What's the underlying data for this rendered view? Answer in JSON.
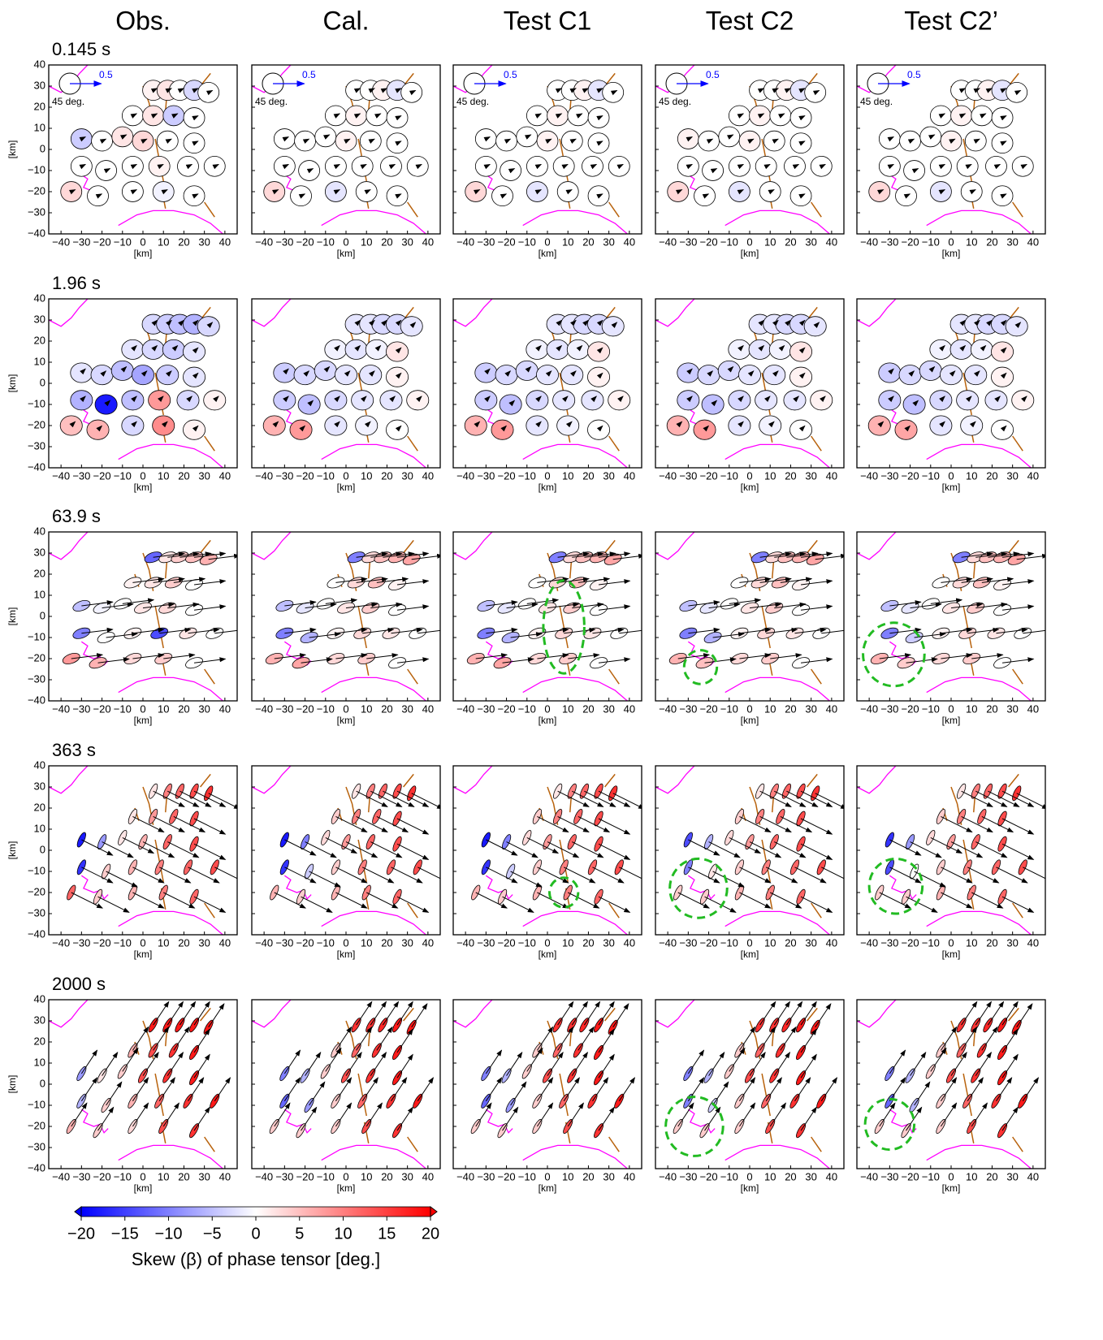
{
  "columns": [
    "Obs.",
    "Cal.",
    "Test C1",
    "Test C2",
    "Test C2’"
  ],
  "axis_label": "[km]",
  "xlim": [
    -46,
    46
  ],
  "ylim": [
    -40,
    40
  ],
  "xticks": [
    {
      "value": -40,
      "label": "−40"
    },
    {
      "value": -30,
      "label": "−30"
    },
    {
      "value": -20,
      "label": "−20"
    },
    {
      "value": -10,
      "label": "−10"
    },
    0,
    10,
    20,
    30,
    40
  ],
  "yticks": [
    {
      "value": -40,
      "label": "−40"
    },
    {
      "value": -30,
      "label": "−30"
    },
    {
      "value": -20,
      "label": "−20"
    },
    {
      "value": -10,
      "label": "−10"
    },
    0,
    10,
    20,
    30,
    40
  ],
  "scale": {
    "arrow": 0.5,
    "circle": {
      "value": 45,
      "label": "45 deg."
    }
  },
  "stations": [
    [
      5,
      28
    ],
    [
      12,
      28
    ],
    [
      18,
      28
    ],
    [
      25,
      28
    ],
    [
      32,
      27
    ],
    [
      -5,
      16
    ],
    [
      5,
      16
    ],
    [
      15,
      16
    ],
    [
      25,
      15
    ],
    [
      -30,
      5
    ],
    [
      -20,
      4
    ],
    [
      -10,
      6
    ],
    [
      0,
      4
    ],
    [
      12,
      4
    ],
    [
      25,
      3
    ],
    [
      -30,
      -8
    ],
    [
      -18,
      -10
    ],
    [
      -5,
      -8
    ],
    [
      8,
      -8
    ],
    [
      22,
      -8
    ],
    [
      35,
      -8
    ],
    [
      -35,
      -20
    ],
    [
      -22,
      -22
    ],
    [
      -5,
      -20
    ],
    [
      10,
      -20
    ],
    [
      25,
      -22
    ]
  ],
  "rows": [
    {
      "period": "0.145 s",
      "phi_max": 45,
      "phi_min": 43,
      "angle": 0,
      "arrow": [
        0.1,
        0.05
      ],
      "panels": [
        {
          "skew": [
            1,
            2,
            0,
            -3,
            0,
            0,
            2,
            -4,
            0,
            -4,
            0,
            2,
            3,
            0,
            0,
            0,
            0,
            0,
            1,
            0,
            0,
            3,
            0,
            0,
            -1,
            0
          ]
        },
        {
          "skew": [
            0,
            0,
            1,
            -2,
            0,
            0,
            1,
            0,
            0,
            0,
            0,
            0,
            1,
            0,
            0,
            0,
            0,
            0,
            0,
            0,
            0,
            3,
            0,
            -2,
            0,
            0
          ]
        },
        {
          "skew": [
            0,
            0,
            1,
            -2,
            0,
            0,
            1,
            0,
            0,
            0,
            0,
            0,
            1,
            0,
            0,
            0,
            0,
            0,
            0,
            0,
            0,
            3,
            0,
            -2,
            0,
            0
          ]
        },
        {
          "skew": [
            0,
            0,
            1,
            -2,
            0,
            0,
            1,
            0,
            0,
            1,
            0,
            0,
            1,
            0,
            0,
            0,
            0,
            0,
            0,
            0,
            0,
            3,
            0,
            -2,
            0,
            0
          ]
        },
        {
          "skew": [
            0,
            0,
            1,
            -2,
            0,
            0,
            1,
            0,
            0,
            0,
            0,
            0,
            1,
            0,
            0,
            0,
            0,
            0,
            0,
            0,
            0,
            3,
            0,
            -2,
            0,
            0
          ]
        }
      ]
    },
    {
      "period": "1.96 s",
      "phi_max": 47,
      "phi_min": 42,
      "angle": 0,
      "arrow": [
        0.1,
        0.1
      ],
      "panels": [
        {
          "skew": [
            -3,
            -4,
            -5,
            -6,
            -3,
            -2,
            -3,
            -4,
            -2,
            -2,
            -3,
            -5,
            -7,
            -4,
            -2,
            -6,
            -18,
            -5,
            8,
            -3,
            1,
            5,
            6,
            -3,
            9,
            1
          ]
        },
        {
          "skew": [
            -2,
            -2,
            -3,
            -3,
            -2,
            -1,
            -2,
            -1,
            2,
            -4,
            -3,
            -3,
            -2,
            -2,
            1,
            -4,
            -5,
            -3,
            -2,
            -2,
            1,
            6,
            8,
            -2,
            -1,
            0
          ]
        },
        {
          "skew": [
            -2,
            -2,
            -3,
            -3,
            -2,
            -1,
            -2,
            -1,
            2,
            -4,
            -3,
            -3,
            -2,
            -2,
            1,
            -4,
            -5,
            -3,
            -2,
            -2,
            1,
            6,
            8,
            -2,
            -1,
            0
          ]
        },
        {
          "skew": [
            -2,
            -2,
            -3,
            -3,
            -2,
            -1,
            -2,
            -1,
            2,
            -4,
            -3,
            -3,
            -2,
            -2,
            1,
            -4,
            -5,
            -3,
            -2,
            -2,
            1,
            6,
            8,
            -2,
            -1,
            0
          ]
        },
        {
          "skew": [
            -2,
            -2,
            -3,
            -3,
            -2,
            -1,
            -2,
            -1,
            2,
            -4,
            -3,
            -3,
            -2,
            -2,
            1,
            -4,
            -5,
            -3,
            -2,
            -2,
            1,
            6,
            7,
            -2,
            -1,
            0
          ]
        }
      ]
    },
    {
      "period": "63.9 s",
      "phi_max": 38,
      "phi_min": 20,
      "angle": 20,
      "arrow": [
        0.8,
        0.1
      ],
      "panels": [
        {
          "skew": [
            -12,
            2,
            4,
            5,
            6,
            1,
            2,
            4,
            0,
            -5,
            -1,
            0,
            2,
            3,
            0,
            -10,
            0,
            1,
            -14,
            2,
            0,
            8,
            6,
            3,
            4,
            0
          ]
        },
        {
          "skew": [
            -10,
            3,
            5,
            6,
            7,
            0,
            3,
            5,
            1,
            -5,
            -2,
            0,
            2,
            4,
            0,
            -10,
            -6,
            1,
            3,
            2,
            0,
            6,
            7,
            3,
            4,
            0
          ]
        },
        {
          "skew": [
            -10,
            3,
            5,
            6,
            7,
            0,
            3,
            5,
            1,
            -5,
            -2,
            0,
            2,
            4,
            0,
            -10,
            -6,
            1,
            3,
            2,
            0,
            6,
            7,
            3,
            4,
            0
          ],
          "highlight": {
            "x": 8,
            "y": -5,
            "rx": 10,
            "ry": 22
          }
        },
        {
          "skew": [
            -10,
            3,
            5,
            6,
            7,
            0,
            3,
            5,
            1,
            -5,
            -2,
            0,
            2,
            4,
            0,
            -10,
            -6,
            1,
            3,
            2,
            0,
            6,
            5,
            3,
            4,
            0
          ],
          "highlight": {
            "x": -24,
            "y": -24,
            "rx": 8,
            "ry": 8
          }
        },
        {
          "skew": [
            -10,
            3,
            5,
            6,
            7,
            0,
            3,
            5,
            1,
            -5,
            -2,
            0,
            2,
            4,
            0,
            -10,
            -4,
            1,
            3,
            2,
            0,
            6,
            4,
            3,
            4,
            0
          ],
          "highlight": {
            "x": -28,
            "y": -18,
            "rx": 15,
            "ry": 15
          }
        }
      ]
    },
    {
      "period": "363 s",
      "phi_max": 34,
      "phi_min": 12,
      "angle": 65,
      "arrow": [
        0.8,
        -0.4
      ],
      "panels": [
        {
          "skew": [
            2,
            10,
            12,
            14,
            16,
            2,
            8,
            12,
            14,
            -18,
            -8,
            2,
            6,
            12,
            14,
            -16,
            4,
            6,
            10,
            12,
            14,
            12,
            4,
            6,
            10,
            12
          ]
        },
        {
          "skew": [
            2,
            10,
            12,
            14,
            16,
            4,
            10,
            12,
            14,
            -18,
            -10,
            3,
            8,
            12,
            14,
            -16,
            -4,
            4,
            10,
            12,
            14,
            6,
            4,
            6,
            10,
            12
          ]
        },
        {
          "skew": [
            2,
            10,
            12,
            14,
            16,
            4,
            10,
            12,
            14,
            -18,
            -10,
            3,
            8,
            12,
            14,
            -16,
            -4,
            4,
            10,
            12,
            14,
            6,
            4,
            6,
            10,
            12
          ],
          "highlight": {
            "x": 8,
            "y": -20,
            "rx": 7,
            "ry": 7
          }
        },
        {
          "skew": [
            2,
            10,
            12,
            14,
            16,
            4,
            10,
            12,
            14,
            -14,
            -6,
            3,
            8,
            12,
            14,
            -10,
            2,
            4,
            10,
            12,
            14,
            4,
            4,
            6,
            10,
            12
          ],
          "highlight": {
            "x": -25,
            "y": -18,
            "rx": 14,
            "ry": 14
          }
        },
        {
          "skew": [
            2,
            10,
            12,
            14,
            16,
            4,
            10,
            12,
            14,
            -16,
            -8,
            3,
            8,
            12,
            14,
            -14,
            0,
            4,
            10,
            12,
            14,
            4,
            4,
            6,
            10,
            12
          ],
          "highlight": {
            "x": -27,
            "y": -17,
            "rx": 13,
            "ry": 13
          }
        }
      ]
    },
    {
      "period": "2000 s",
      "phi_max": 34,
      "phi_min": 11,
      "angle": 60,
      "arrow": [
        0.4,
        0.6
      ],
      "panels": [
        {
          "skew": [
            18,
            18,
            18,
            18,
            18,
            6,
            14,
            16,
            18,
            -8,
            2,
            4,
            14,
            16,
            18,
            -6,
            4,
            6,
            12,
            16,
            18,
            6,
            4,
            3,
            14,
            16
          ]
        },
        {
          "skew": [
            16,
            16,
            17,
            18,
            18,
            4,
            12,
            16,
            18,
            -10,
            -6,
            4,
            14,
            16,
            18,
            -12,
            -8,
            4,
            12,
            16,
            18,
            4,
            4,
            4,
            14,
            16
          ]
        },
        {
          "skew": [
            16,
            16,
            17,
            18,
            18,
            4,
            12,
            16,
            18,
            -10,
            -6,
            4,
            14,
            16,
            18,
            -12,
            -8,
            4,
            12,
            16,
            18,
            4,
            4,
            4,
            14,
            16
          ]
        },
        {
          "skew": [
            16,
            16,
            17,
            18,
            18,
            4,
            12,
            16,
            18,
            -10,
            -6,
            4,
            14,
            16,
            18,
            -10,
            -4,
            4,
            12,
            16,
            18,
            4,
            4,
            4,
            14,
            16
          ],
          "highlight": {
            "x": -27,
            "y": -20,
            "rx": 14,
            "ry": 14
          }
        },
        {
          "skew": [
            16,
            16,
            17,
            18,
            18,
            4,
            12,
            16,
            18,
            -10,
            -6,
            4,
            14,
            16,
            18,
            -12,
            -6,
            4,
            12,
            16,
            18,
            4,
            4,
            4,
            14,
            16
          ],
          "highlight": {
            "x": -30,
            "y": -19,
            "rx": 12,
            "ry": 12
          }
        }
      ]
    }
  ],
  "colorbar": {
    "title": "Skew (β) of phase tensor [deg.]",
    "lim": [
      -20,
      20
    ],
    "ticks": [
      {
        "value": -20,
        "label": "−20"
      },
      {
        "value": -15,
        "label": "−15"
      },
      {
        "value": -10,
        "label": "−10"
      },
      {
        "value": -5,
        "label": "−5"
      },
      0,
      5,
      10,
      15,
      20
    ]
  }
}
